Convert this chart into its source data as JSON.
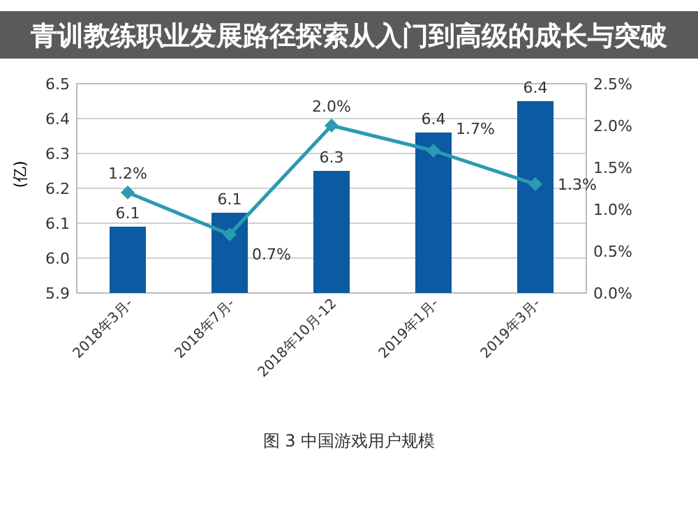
{
  "chart_data": {
    "type": "bar",
    "title": "青训教练职业发展路径探索从入门到高级的成长与突破",
    "ylabel": "(亿)",
    "categories": [
      "2018年3月-",
      "2018年7月-",
      "2018年10月-12",
      "2019年1月-",
      "2019年3月-"
    ],
    "series": [
      {
        "color": "#0b5aa2",
        "values": [
          6.09,
          6.13,
          6.25,
          6.36,
          6.45
        ],
        "value_labels": [
          "6.1",
          "6.1",
          "6.3",
          "6.4",
          "6.4"
        ]
      },
      {
        "type": "line",
        "axis": "y2",
        "color": "#2a9bb0",
        "marker": "diamond",
        "values": [
          1.2,
          0.7,
          2.0,
          1.7,
          1.3
        ],
        "value_labels": [
          "1.2%",
          "0.7%",
          "2.0%",
          "1.7%",
          "1.3%"
        ]
      }
    ],
    "ylim": [
      5.9,
      6.5
    ],
    "yticks": [
      5.9,
      {
        "value": 6,
        "label": "6.0"
      },
      6.1,
      6.2,
      6.3,
      6.4,
      6.5
    ],
    "y2lim": [
      0,
      2.5
    ],
    "y2ticks": [
      {
        "value": 0,
        "label": "0.0%"
      },
      {
        "value": 0.5,
        "label": "0.5%"
      },
      {
        "value": 1,
        "label": "1.0%"
      },
      {
        "value": 1.5,
        "label": "1.5%"
      },
      {
        "value": 2,
        "label": "2.0%"
      },
      {
        "value": 2.5,
        "label": "2.5%"
      }
    ],
    "grid": "y",
    "annotations": [
      "图 3  中国游戏用户规模"
    ]
  }
}
